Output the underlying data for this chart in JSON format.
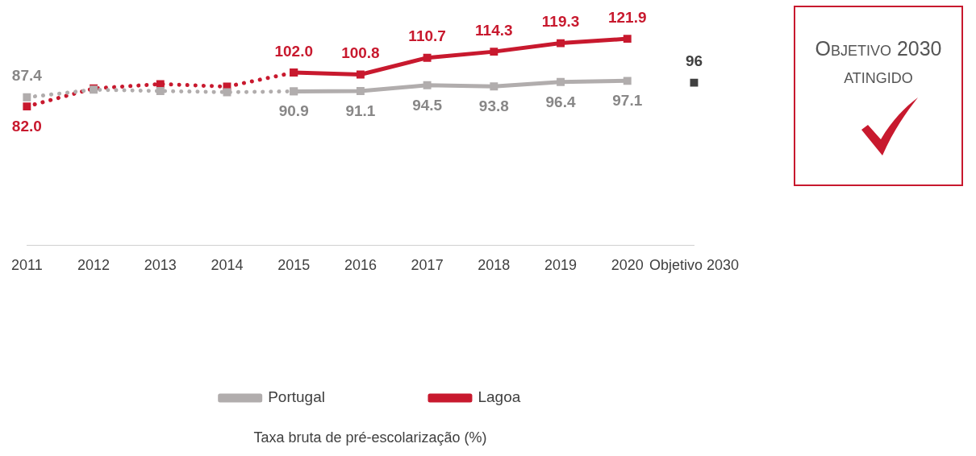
{
  "chart_data": {
    "type": "line",
    "title": "Taxa bruta de pré-escolarização (%)",
    "categories": [
      "2011",
      "2012",
      "2013",
      "2014",
      "2015",
      "2016",
      "2017",
      "2018",
      "2019",
      "2020",
      "Objetivo 2030"
    ],
    "tick_labels": "x",
    "grid": false,
    "legend": "bottom",
    "marker": "square",
    "series": [
      {
        "name": "Portugal",
        "color": "#b1adad",
        "line_style": "solid",
        "values": [
          null,
          null,
          null,
          null,
          90.9,
          91.1,
          94.5,
          93.8,
          96.4,
          97.1,
          null
        ],
        "value_labels": [
          null,
          null,
          null,
          null,
          "90.9",
          "91.1",
          "94.5",
          "93.8",
          "96.4",
          "97.1",
          null
        ]
      },
      {
        "color": "#b1adad",
        "line_style": "dotted",
        "values": [
          87.4,
          91.9,
          91.1,
          90.4,
          90.9,
          null,
          null,
          null,
          null,
          null,
          null
        ],
        "value_labels": [
          "87.4",
          null,
          null,
          null,
          null,
          null,
          null,
          null,
          null,
          null,
          null
        ]
      },
      {
        "name": "Lagoa",
        "color": "#c8192e",
        "line_style": "solid",
        "values": [
          null,
          null,
          null,
          null,
          102.0,
          100.8,
          110.7,
          114.3,
          119.3,
          121.9,
          null
        ],
        "value_labels": [
          null,
          null,
          null,
          null,
          "102.0",
          "100.8",
          "110.7",
          "114.3",
          "119.3",
          "121.9",
          null
        ]
      },
      {
        "color": "#c8192e",
        "line_style": "dotted",
        "values": [
          82.0,
          92.6,
          95.2,
          93.7,
          102.0,
          null,
          null,
          null,
          null,
          null,
          null
        ],
        "value_labels": [
          "82.0",
          null,
          null,
          null,
          null,
          null,
          null,
          null,
          null,
          null,
          null
        ]
      },
      {
        "type": "scatter",
        "color": "#404040",
        "values": [
          null,
          null,
          null,
          null,
          null,
          null,
          null,
          null,
          null,
          null,
          96
        ],
        "value_labels": [
          null,
          null,
          null,
          null,
          null,
          null,
          null,
          null,
          null,
          null,
          "96"
        ]
      }
    ],
    "annotations": [
      "Objetivo 2030 atingido"
    ]
  }
}
